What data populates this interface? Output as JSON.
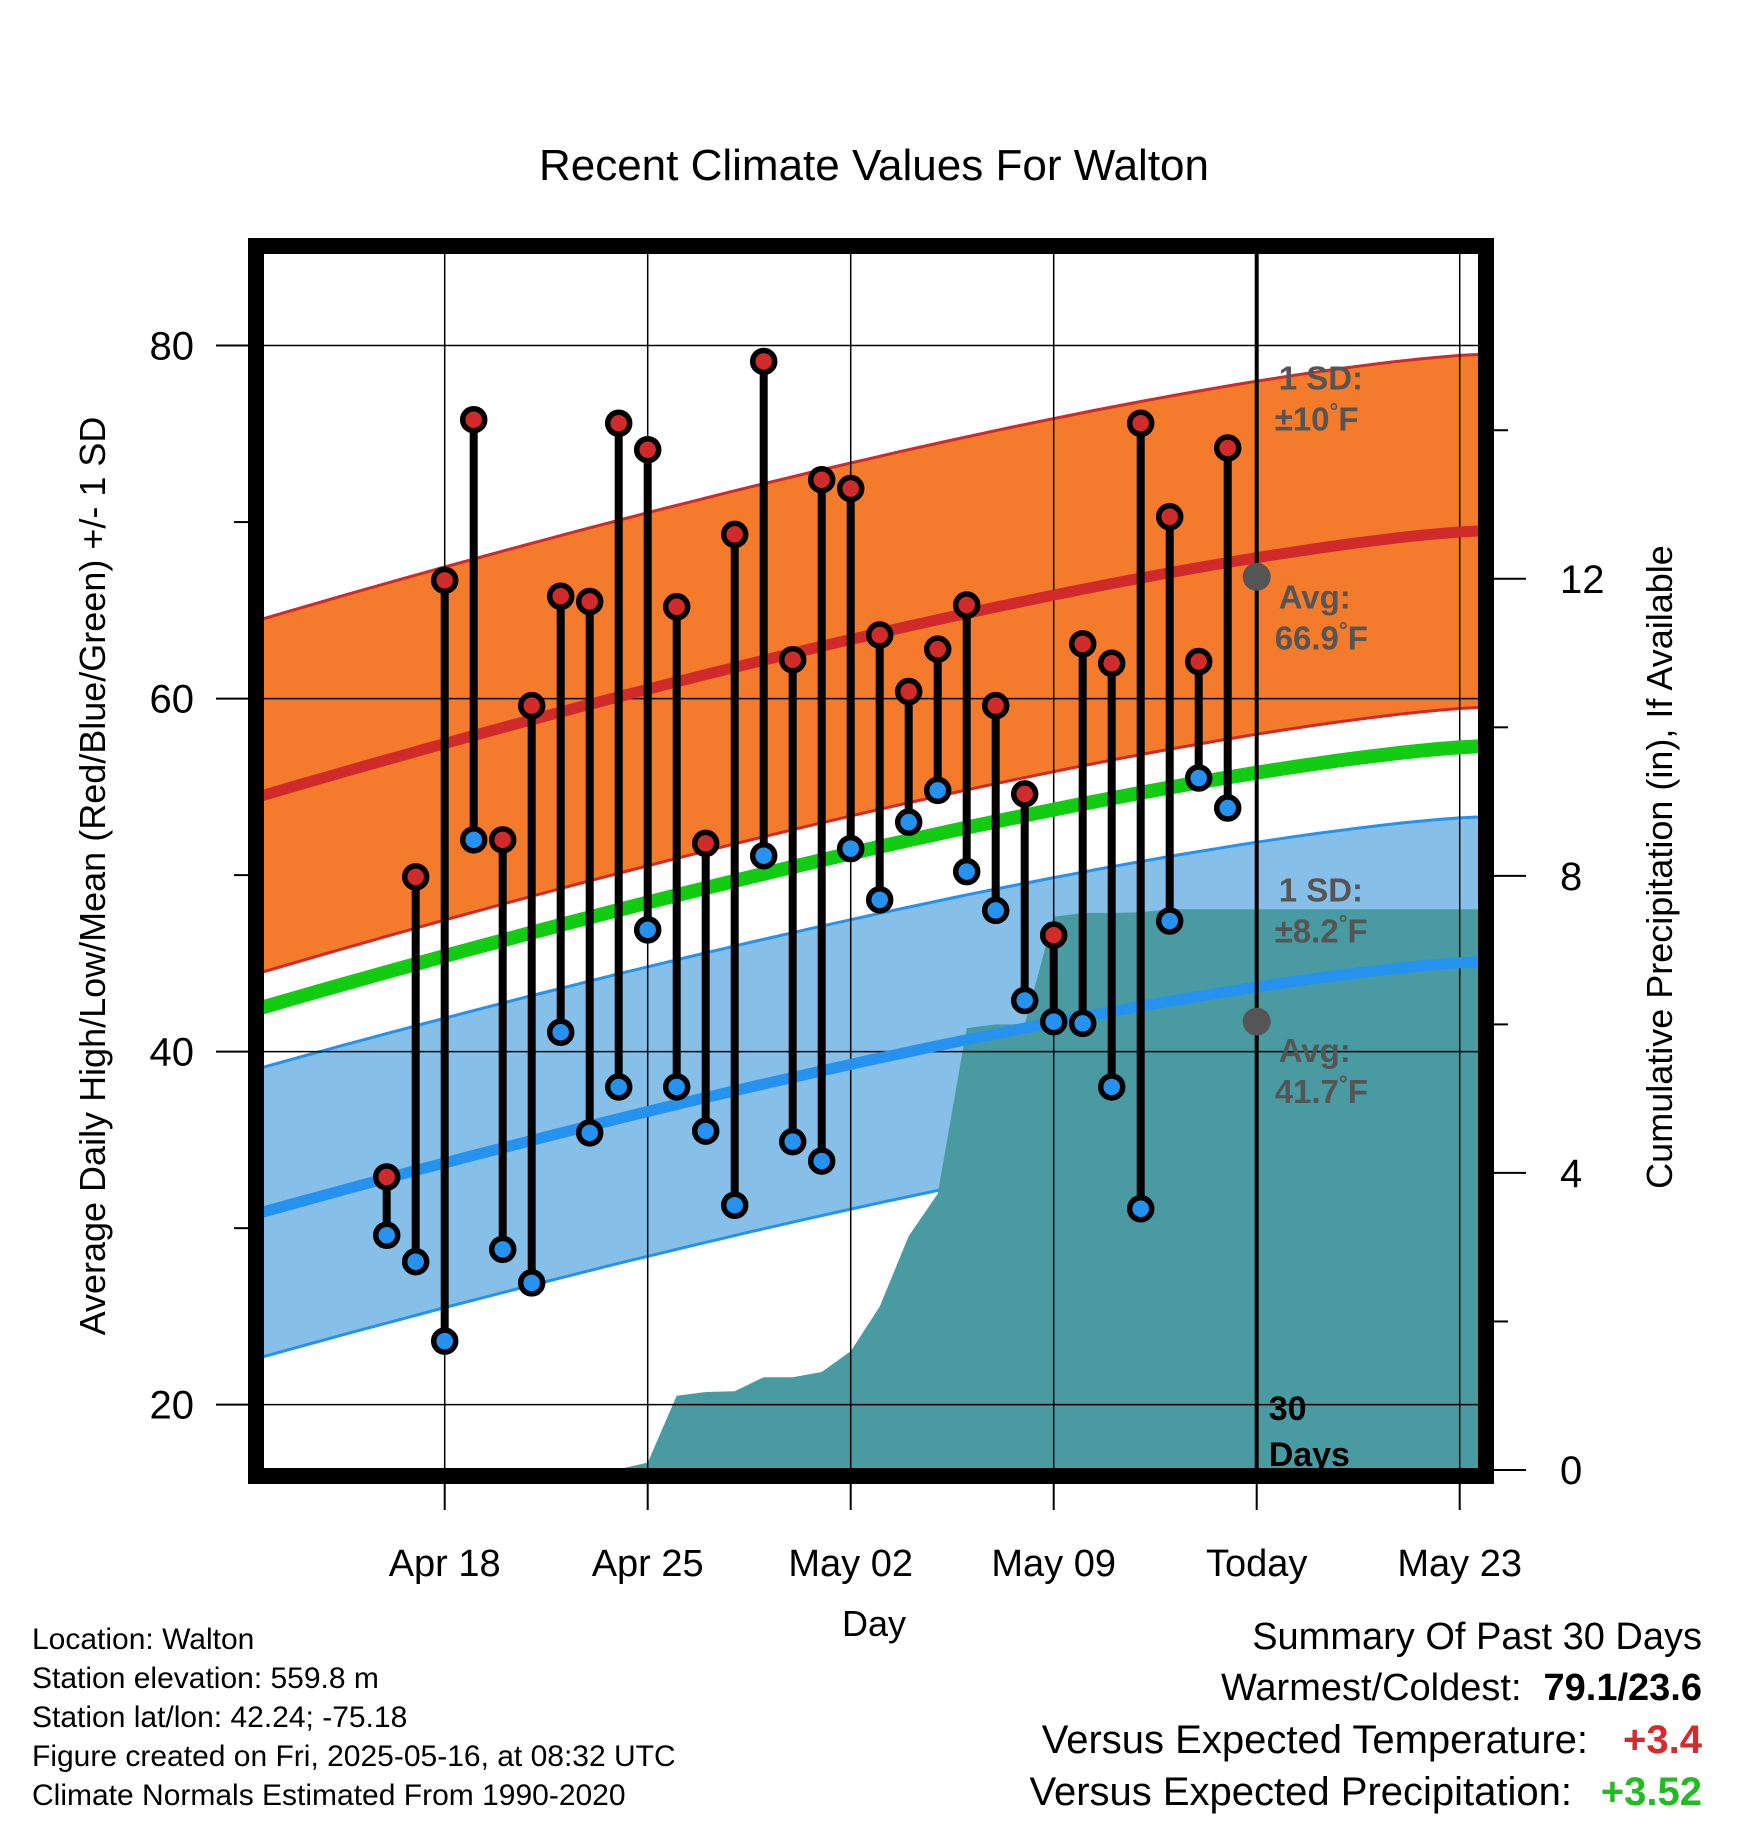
{
  "chart_data": {
    "type": "line",
    "title": "Recent Climate Values For Walton",
    "xlabel": "Day",
    "ylabel": "Average Daily High/Low/Mean (Red/Blue/Green) +/- 1 SD",
    "y2label": "Cumulative Precipitation (in), If Available",
    "ylim": [
      16.3,
      85.3
    ],
    "y2lim": [
      0,
      16.4
    ],
    "xlim": [
      -3.3,
      38.7
    ],
    "x_day0": "2025-04-15",
    "yticks": [
      20,
      40,
      60,
      80
    ],
    "y2ticks": [
      0,
      4,
      8,
      12
    ],
    "xticks": [
      {
        "day": 3,
        "label": "Apr 18"
      },
      {
        "day": 10,
        "label": "Apr 25"
      },
      {
        "day": 17,
        "label": "May 02"
      },
      {
        "day": 24,
        "label": "May 09"
      },
      {
        "day": 31,
        "label": "Today"
      },
      {
        "day": 38,
        "label": "May 23"
      }
    ],
    "days": [
      1,
      2,
      3,
      4,
      5,
      6,
      7,
      8,
      9,
      10,
      11,
      12,
      13,
      14,
      15,
      16,
      17,
      18,
      19,
      20,
      21,
      22,
      23,
      24,
      25,
      26,
      27,
      28,
      29,
      30
    ],
    "highs": [
      32.9,
      49.9,
      66.7,
      75.8,
      52.0,
      59.6,
      65.8,
      65.5,
      75.6,
      74.1,
      65.2,
      51.8,
      69.3,
      79.1,
      62.2,
      72.4,
      71.9,
      63.6,
      60.4,
      62.8,
      65.3,
      59.6,
      54.6,
      46.6,
      63.1,
      62.0,
      75.6,
      70.3,
      62.1,
      74.2
    ],
    "lows": [
      29.6,
      28.1,
      23.6,
      52.0,
      28.8,
      26.9,
      41.1,
      35.4,
      38.0,
      46.9,
      38.0,
      35.5,
      31.3,
      51.1,
      34.9,
      33.8,
      51.5,
      48.6,
      53.0,
      54.8,
      50.2,
      48.0,
      42.9,
      41.7,
      41.6,
      38.0,
      31.1,
      47.4,
      55.5,
      53.8
    ],
    "precip_cumulative": [
      [
        1,
        0.0
      ],
      [
        2,
        0.0
      ],
      [
        3,
        0.0
      ],
      [
        4,
        0.01
      ],
      [
        5,
        0.01
      ],
      [
        6,
        0.01
      ],
      [
        7,
        0.01
      ],
      [
        8,
        0.01
      ],
      [
        9,
        0.01
      ],
      [
        10,
        0.1
      ],
      [
        11,
        1.0
      ],
      [
        12,
        1.05
      ],
      [
        13,
        1.06
      ],
      [
        14,
        1.25
      ],
      [
        15,
        1.25
      ],
      [
        16,
        1.32
      ],
      [
        17,
        1.6
      ],
      [
        18,
        2.2
      ],
      [
        19,
        3.15
      ],
      [
        20,
        3.72
      ],
      [
        21,
        5.95
      ],
      [
        22,
        6.0
      ],
      [
        23,
        6.0
      ],
      [
        24,
        7.45
      ],
      [
        25,
        7.5
      ],
      [
        26,
        7.5
      ],
      [
        27,
        7.51
      ],
      [
        28,
        7.55
      ],
      [
        29,
        7.55
      ],
      [
        30,
        7.55
      ],
      [
        38.7,
        7.55
      ]
    ],
    "normals": {
      "high_avg": {
        "start": 54.5,
        "end": 69.5,
        "today": 66.9
      },
      "low_avg": {
        "start": 30.9,
        "end": 45.1,
        "today": 41.7
      },
      "mean_avg": {
        "start": 42.5,
        "end": 57.3
      },
      "high_sd": 10,
      "low_sd": 8.2
    },
    "annotations": {
      "high_sd": [
        "1 SD:",
        "±10",
        "°F"
      ],
      "high_avg": [
        "Avg:",
        "66.9",
        "°F"
      ],
      "low_sd": [
        "1 SD:",
        "±8.2",
        "°F"
      ],
      "low_avg": [
        "Avg:",
        "41.7",
        "°F"
      ],
      "window": [
        "30",
        "Days"
      ]
    },
    "colors": {
      "high": "#d02a2a",
      "low": "#2592f0",
      "mean": "#11cc11",
      "high_band": "#f47a2c",
      "low_band": "#86c0e8",
      "precip": "#4a9aa2",
      "annotation": "#555555"
    }
  },
  "footer": {
    "location": "Location: Walton",
    "elevation": "Station elevation: 559.8 m",
    "latlon": "Station lat/lon: 42.24; -75.18",
    "created": "Figure created on Fri, 2025-05-16, at 08:32 UTC",
    "normals_period": "Climate Normals Estimated From 1990-2020"
  },
  "summary": {
    "heading": "Summary Of Past 30 Days",
    "warm_cold_label": "Warmest/Coldest:",
    "warm_cold_value": "79.1/23.6",
    "temp_label": "Versus Expected Temperature:",
    "temp_value": "+3.4",
    "precip_label": "Versus Expected Precipitation:",
    "precip_value": "+3.52"
  }
}
